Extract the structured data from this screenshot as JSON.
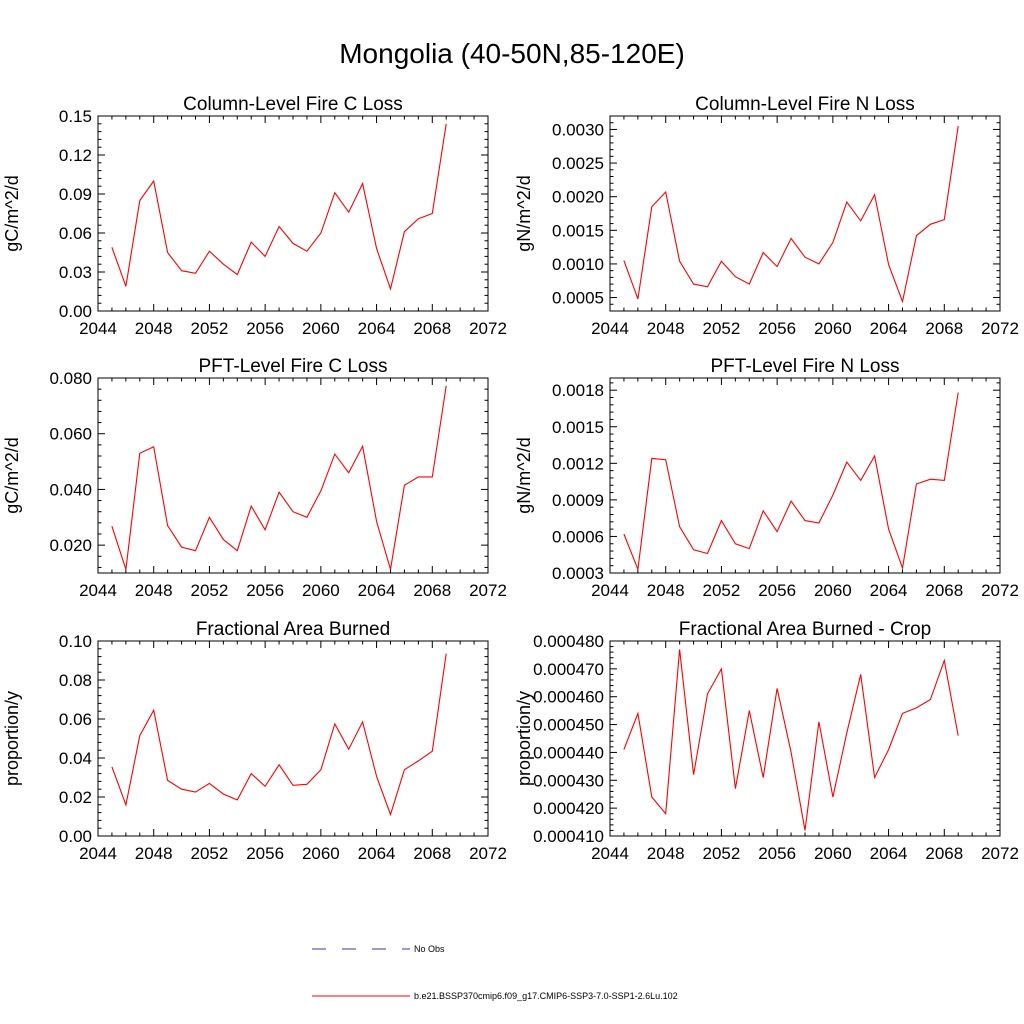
{
  "title": "Mongolia (40-50N,85-120E)",
  "legend": [
    {
      "label": "No Obs",
      "color": "#3333aa",
      "style": "dashed"
    },
    {
      "label": "b.e21.BSSP370cmip6.f09_g17.CMIP6-SSP3-7.0-SSP1-2.6Lu.102",
      "color": "#ff0000",
      "style": "solid"
    }
  ],
  "chart_data": [
    {
      "type": "line",
      "title": "Column-Level Fire C Loss",
      "ylabel": "gC/m^2/d",
      "xlim": [
        2044,
        2072
      ],
      "ylim": [
        0,
        0.15
      ],
      "xticks": [
        "2044",
        "2048",
        "2052",
        "2056",
        "2060",
        "2064",
        "2068",
        "2072"
      ],
      "yticks": [
        "0.00",
        "0.03",
        "0.06",
        "0.09",
        "0.12",
        "0.15"
      ],
      "x": [
        2045,
        2046,
        2047,
        2048,
        2049,
        2050,
        2051,
        2052,
        2053,
        2054,
        2055,
        2056,
        2057,
        2058,
        2059,
        2060,
        2061,
        2062,
        2063,
        2064,
        2065,
        2066,
        2067,
        2068,
        2069
      ],
      "series": [
        {
          "name": "b.e21.BSSP370cmip6.f09_g17.CMIP6-SSP3-7.0-SSP1-2.6Lu.102",
          "color": "#ff0000",
          "values": [
            0.049,
            0.019,
            0.085,
            0.1,
            0.045,
            0.031,
            0.029,
            0.046,
            0.036,
            0.028,
            0.053,
            0.042,
            0.065,
            0.052,
            0.046,
            0.06,
            0.091,
            0.076,
            0.098,
            0.048,
            0.017,
            0.061,
            0.071,
            0.075,
            0.144
          ]
        }
      ]
    },
    {
      "type": "line",
      "title": "Column-Level Fire N Loss",
      "ylabel": "gN/m^2/d",
      "xlim": [
        2044,
        2072
      ],
      "ylim": [
        0.0003,
        0.0032
      ],
      "xticks": [
        "2044",
        "2048",
        "2052",
        "2056",
        "2060",
        "2064",
        "2068",
        "2072"
      ],
      "yticks": [
        "0.0005",
        "0.0010",
        "0.0015",
        "0.0020",
        "0.0025",
        "0.0030"
      ],
      "x": [
        2045,
        2046,
        2047,
        2048,
        2049,
        2050,
        2051,
        2052,
        2053,
        2054,
        2055,
        2056,
        2057,
        2058,
        2059,
        2060,
        2061,
        2062,
        2063,
        2064,
        2065,
        2066,
        2067,
        2068,
        2069
      ],
      "series": [
        {
          "name": "b.e21.BSSP370cmip6.f09_g17.CMIP6-SSP3-7.0-SSP1-2.6Lu.102",
          "color": "#ff0000",
          "values": [
            0.00105,
            0.00048,
            0.00185,
            0.00207,
            0.00104,
            0.0007,
            0.00066,
            0.00104,
            0.00081,
            0.0007,
            0.00117,
            0.00096,
            0.00138,
            0.0011,
            0.001,
            0.00132,
            0.00192,
            0.00164,
            0.00203,
            0.00099,
            0.00044,
            0.00142,
            0.00159,
            0.00166,
            0.00305
          ]
        }
      ]
    },
    {
      "type": "line",
      "title": "PFT-Level Fire C Loss",
      "ylabel": "gC/m^2/d",
      "xlim": [
        2044,
        2072
      ],
      "ylim": [
        0.01,
        0.08
      ],
      "xticks": [
        "2044",
        "2048",
        "2052",
        "2056",
        "2060",
        "2064",
        "2068",
        "2072"
      ],
      "yticks": [
        "0.020",
        "0.040",
        "0.060",
        "0.080"
      ],
      "x": [
        2045,
        2046,
        2047,
        2048,
        2049,
        2050,
        2051,
        2052,
        2053,
        2054,
        2055,
        2056,
        2057,
        2058,
        2059,
        2060,
        2061,
        2062,
        2063,
        2064,
        2065,
        2066,
        2067,
        2068,
        2069
      ],
      "series": [
        {
          "name": "b.e21.BSSP370cmip6.f09_g17.CMIP6-SSP3-7.0-SSP1-2.6Lu.102",
          "color": "#ff0000",
          "values": [
            0.0268,
            0.0113,
            0.053,
            0.0553,
            0.027,
            0.0193,
            0.018,
            0.03,
            0.022,
            0.018,
            0.034,
            0.0255,
            0.039,
            0.032,
            0.03,
            0.0395,
            0.0527,
            0.046,
            0.0555,
            0.0285,
            0.0113,
            0.0415,
            0.0445,
            0.0445,
            0.0772
          ]
        }
      ]
    },
    {
      "type": "line",
      "title": "PFT-Level Fire N Loss",
      "ylabel": "gN/m^2/d",
      "xlim": [
        2044,
        2072
      ],
      "ylim": [
        0.0003,
        0.0019
      ],
      "xticks": [
        "2044",
        "2048",
        "2052",
        "2056",
        "2060",
        "2064",
        "2068",
        "2072"
      ],
      "yticks": [
        "0.0003",
        "0.0006",
        "0.0009",
        "0.0012",
        "0.0015",
        "0.0018"
      ],
      "x": [
        2045,
        2046,
        2047,
        2048,
        2049,
        2050,
        2051,
        2052,
        2053,
        2054,
        2055,
        2056,
        2057,
        2058,
        2059,
        2060,
        2061,
        2062,
        2063,
        2064,
        2065,
        2066,
        2067,
        2068,
        2069
      ],
      "series": [
        {
          "name": "b.e21.BSSP370cmip6.f09_g17.CMIP6-SSP3-7.0-SSP1-2.6Lu.102",
          "color": "#ff0000",
          "values": [
            0.00062,
            0.00033,
            0.00124,
            0.00123,
            0.00068,
            0.00049,
            0.00046,
            0.00073,
            0.00054,
            0.0005,
            0.00081,
            0.00064,
            0.00089,
            0.00073,
            0.00071,
            0.00094,
            0.00121,
            0.00106,
            0.00126,
            0.00066,
            0.00034,
            0.00103,
            0.00107,
            0.00106,
            0.00178
          ]
        }
      ]
    },
    {
      "type": "line",
      "title": "Fractional Area Burned",
      "ylabel": "proportion/y",
      "xlim": [
        2044,
        2072
      ],
      "ylim": [
        0,
        0.1
      ],
      "xticks": [
        "2044",
        "2048",
        "2052",
        "2056",
        "2060",
        "2064",
        "2068",
        "2072"
      ],
      "yticks": [
        "0.00",
        "0.02",
        "0.04",
        "0.06",
        "0.08",
        "0.10"
      ],
      "x": [
        2045,
        2046,
        2047,
        2048,
        2049,
        2050,
        2051,
        2052,
        2053,
        2054,
        2055,
        2056,
        2057,
        2058,
        2059,
        2060,
        2061,
        2062,
        2063,
        2064,
        2065,
        2066,
        2067,
        2068,
        2069
      ],
      "series": [
        {
          "name": "b.e21.BSSP370cmip6.f09_g17.CMIP6-SSP3-7.0-SSP1-2.6Lu.102",
          "color": "#ff0000",
          "values": [
            0.0355,
            0.016,
            0.0515,
            0.0645,
            0.0285,
            0.024,
            0.0225,
            0.027,
            0.0215,
            0.0185,
            0.032,
            0.0255,
            0.0365,
            0.026,
            0.0265,
            0.034,
            0.0575,
            0.0445,
            0.0585,
            0.0305,
            0.011,
            0.034,
            0.0385,
            0.0435,
            0.0935
          ]
        }
      ]
    },
    {
      "type": "line",
      "title": "Fractional Area Burned - Crop",
      "ylabel": "proportion/y",
      "xlim": [
        2044,
        2072
      ],
      "ylim": [
        0.00041,
        0.00048
      ],
      "xticks": [
        "2044",
        "2048",
        "2052",
        "2056",
        "2060",
        "2064",
        "2068",
        "2072"
      ],
      "yticks": [
        "0.000410",
        "0.000420",
        "0.000430",
        "0.000440",
        "0.000450",
        "0.000460",
        "0.000470",
        "0.000480"
      ],
      "x": [
        2045,
        2046,
        2047,
        2048,
        2049,
        2050,
        2051,
        2052,
        2053,
        2054,
        2055,
        2056,
        2057,
        2058,
        2059,
        2060,
        2061,
        2062,
        2063,
        2064,
        2065,
        2066,
        2067,
        2068,
        2069
      ],
      "series": [
        {
          "name": "b.e21.BSSP370cmip6.f09_g17.CMIP6-SSP3-7.0-SSP1-2.6Lu.102",
          "color": "#ff0000",
          "values": [
            0.000441,
            0.000454,
            0.000424,
            0.000418,
            0.000477,
            0.000432,
            0.000461,
            0.00047,
            0.000427,
            0.000455,
            0.000431,
            0.000463,
            0.00044,
            0.000412,
            0.000451,
            0.000424,
            0.000447,
            0.000468,
            0.000431,
            0.000441,
            0.000454,
            0.000456,
            0.000459,
            0.000473,
            0.000446
          ]
        }
      ]
    }
  ]
}
